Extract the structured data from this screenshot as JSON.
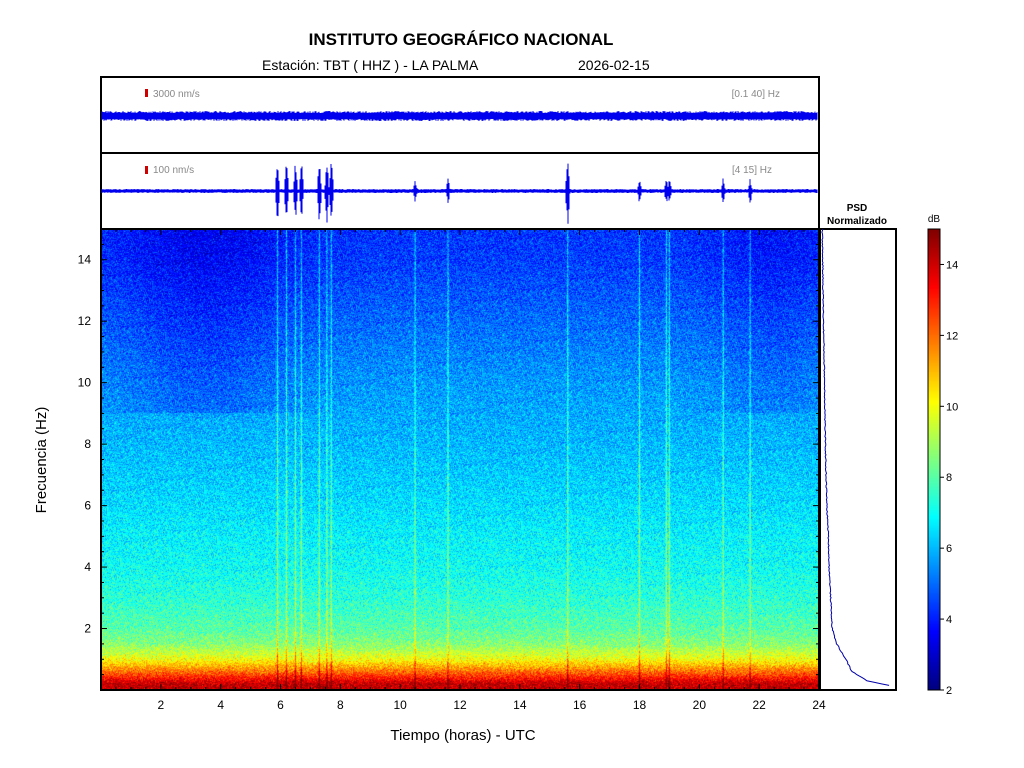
{
  "header": {
    "title": "INSTITUTO GEOGRÁFICO NACIONAL",
    "station": "Estación:  TBT ( HHZ ) - LA PALMA",
    "date": "2026-02-15"
  },
  "traces": [
    {
      "scale_label": "3000 nm/s",
      "band_label": "[0.1 40] Hz"
    },
    {
      "scale_label": "100 nm/s",
      "band_label": "[4 15] Hz"
    }
  ],
  "psd_panel": {
    "title_line1": "PSD",
    "title_line2": "Normalizado"
  },
  "colorbar": {
    "unit": "dB",
    "range": [
      2,
      15
    ],
    "ticks": [
      2,
      4,
      6,
      8,
      10,
      12,
      14
    ],
    "colormap": "jet"
  },
  "chart_data": {
    "type": "heatmap",
    "title": "",
    "xlabel": "Tiempo (horas) - UTC",
    "ylabel": "Frecuencia  (Hz)",
    "xlim": [
      0,
      24
    ],
    "ylim": [
      0,
      15
    ],
    "xticks": [
      2,
      4,
      6,
      8,
      10,
      12,
      14,
      16,
      18,
      20,
      22,
      24
    ],
    "yticks": [
      2,
      4,
      6,
      8,
      10,
      12,
      14
    ],
    "frequency_profile_db": [
      {
        "f": 0.2,
        "db": 14.2
      },
      {
        "f": 0.5,
        "db": 12.5
      },
      {
        "f": 1.0,
        "db": 10.0
      },
      {
        "f": 1.5,
        "db": 8.6
      },
      {
        "f": 2.0,
        "db": 8.0
      },
      {
        "f": 3.0,
        "db": 7.4
      },
      {
        "f": 4.0,
        "db": 7.0
      },
      {
        "f": 5.0,
        "db": 6.8
      },
      {
        "f": 6.0,
        "db": 6.5
      },
      {
        "f": 8.0,
        "db": 6.0
      },
      {
        "f": 10.0,
        "db": 5.6
      },
      {
        "f": 12.0,
        "db": 5.0
      },
      {
        "f": 14.0,
        "db": 4.4
      },
      {
        "f": 15.0,
        "db": 4.3
      }
    ],
    "events_hours": [
      5.9,
      6.2,
      6.5,
      6.7,
      7.3,
      7.55,
      7.7,
      10.5,
      11.6,
      15.6,
      18.0,
      18.9,
      19.0,
      20.8,
      21.7
    ],
    "psd_normalized": [
      {
        "f": 0.1,
        "v": 1.0
      },
      {
        "f": 0.3,
        "v": 0.62
      },
      {
        "f": 0.6,
        "v": 0.42
      },
      {
        "f": 1.0,
        "v": 0.34
      },
      {
        "f": 1.5,
        "v": 0.22
      },
      {
        "f": 2.0,
        "v": 0.16
      },
      {
        "f": 3.0,
        "v": 0.14
      },
      {
        "f": 4.0,
        "v": 0.12
      },
      {
        "f": 5.0,
        "v": 0.11
      },
      {
        "f": 6.0,
        "v": 0.09
      },
      {
        "f": 8.0,
        "v": 0.07
      },
      {
        "f": 10.0,
        "v": 0.06
      },
      {
        "f": 12.0,
        "v": 0.045
      },
      {
        "f": 14.0,
        "v": 0.035
      },
      {
        "f": 15.0,
        "v": 0.03
      }
    ]
  }
}
